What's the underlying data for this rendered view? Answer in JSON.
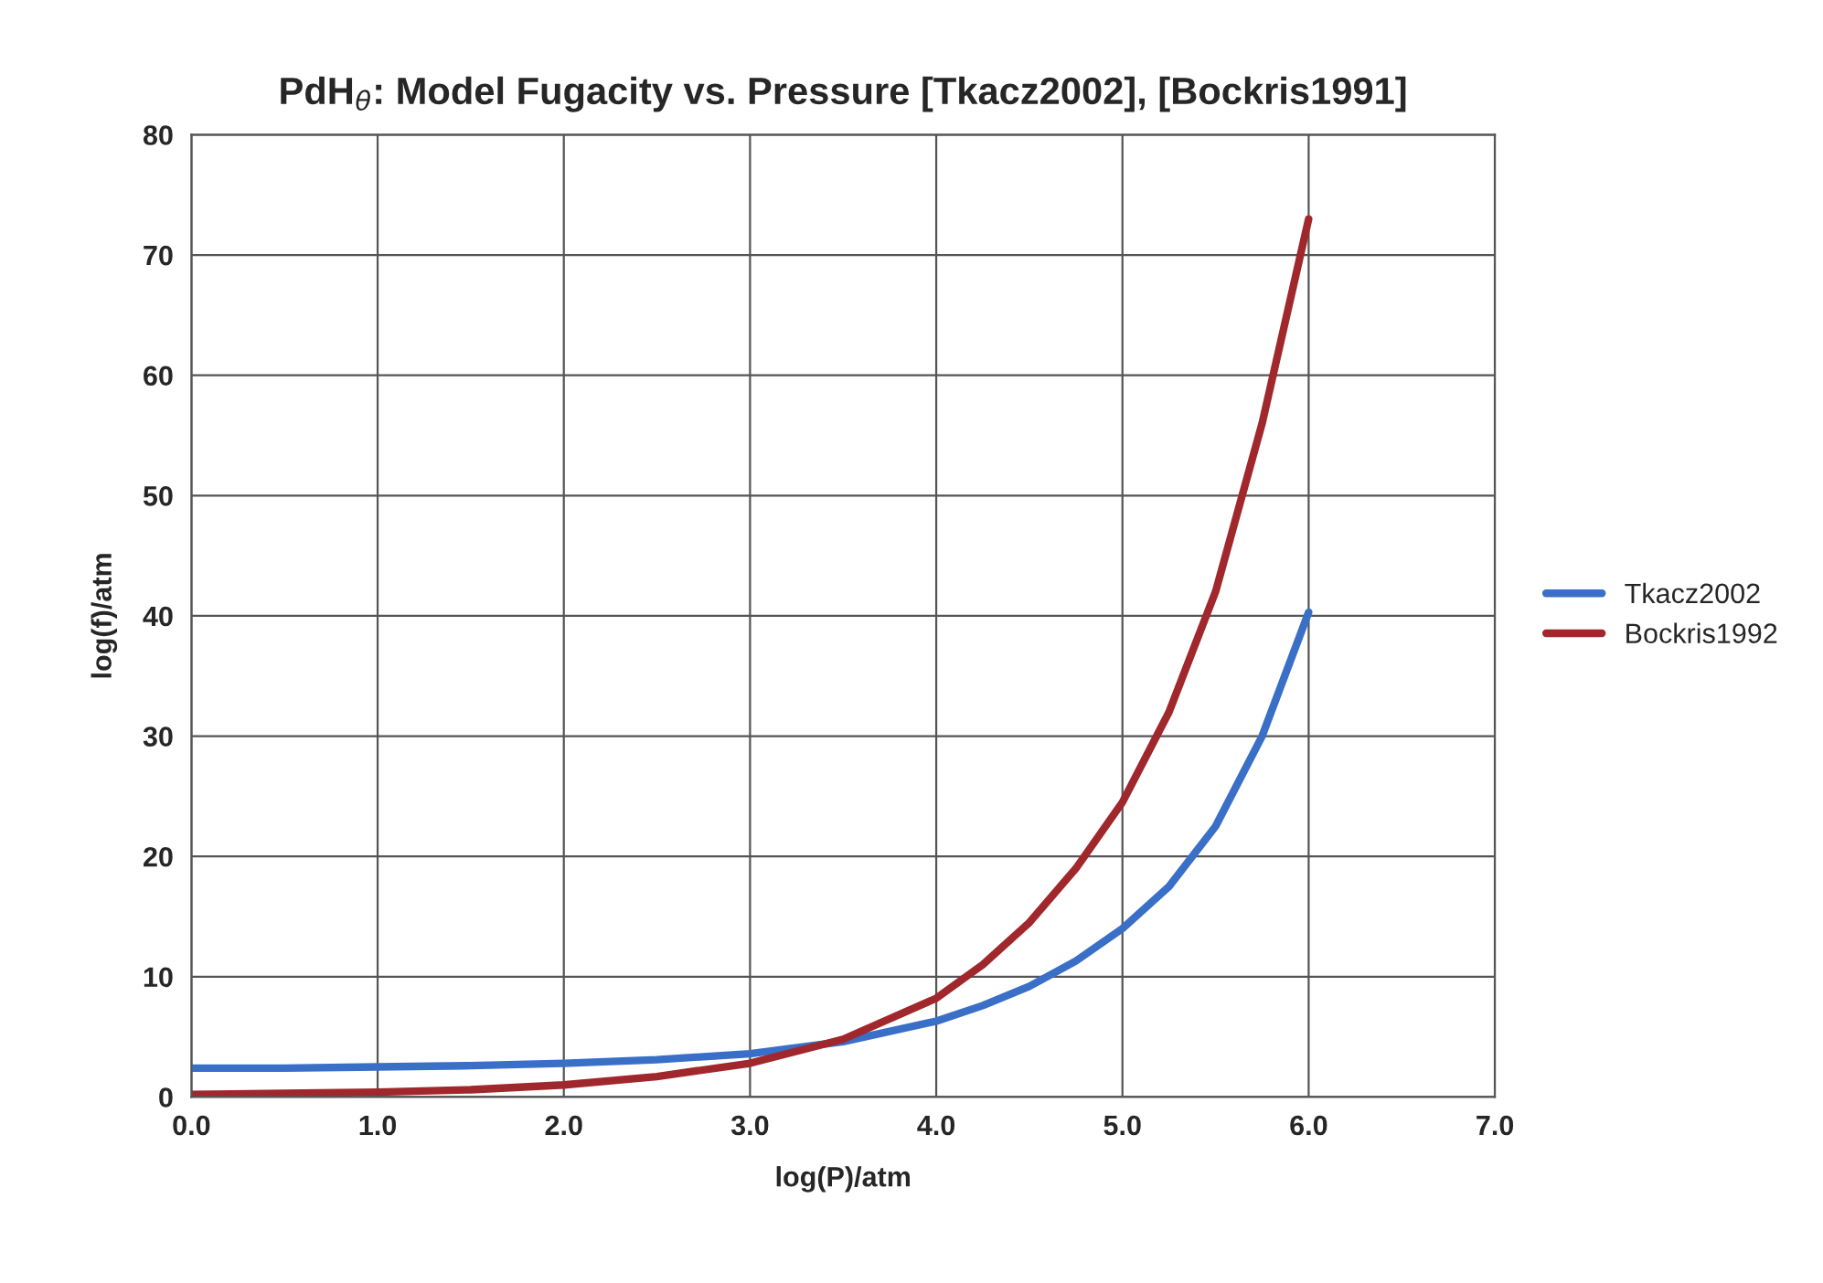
{
  "chart_data": {
    "type": "line",
    "title": "PdH$_{θ}$: Model Fugacity vs. Pressure [Tkacz2002], [Bockris1991]",
    "xlabel": "log(P)/atm",
    "ylabel": "log(f)/atm",
    "x": [
      0,
      0.5,
      1,
      1.5,
      2,
      2.5,
      3,
      3.5,
      4,
      4.25,
      4.5,
      4.75,
      5,
      5.25,
      5.5,
      5.75,
      6
    ],
    "series": [
      {
        "name": "Tkacz2002",
        "color": "#3a6fc8",
        "values": [
          2.4,
          2.4,
          2.5,
          2.6,
          2.8,
          3.1,
          3.6,
          4.6,
          6.3,
          7.6,
          9.2,
          11.3,
          14,
          17.5,
          22.5,
          30,
          40.3
        ]
      },
      {
        "name": "Bockris1992",
        "color": "#a0282c",
        "values": [
          0.2,
          0.3,
          0.4,
          0.6,
          1.0,
          1.7,
          2.8,
          4.8,
          8.2,
          11,
          14.5,
          19,
          24.5,
          32,
          42,
          56,
          73
        ]
      }
    ],
    "xlim": [
      0,
      7
    ],
    "xticks": [
      {
        "value": 0,
        "label": "0.0"
      },
      {
        "value": 1,
        "label": "1.0"
      },
      {
        "value": 2,
        "label": "2.0"
      },
      {
        "value": 3,
        "label": "3.0"
      },
      {
        "value": 4,
        "label": "4.0"
      },
      {
        "value": 5,
        "label": "5.0"
      },
      {
        "value": 6,
        "label": "6.0"
      },
      {
        "value": 7,
        "label": "7.0"
      }
    ],
    "ylim": [
      0,
      80
    ],
    "yticks": [
      0,
      10,
      20,
      30,
      40,
      50,
      60,
      70,
      80
    ],
    "grid": true,
    "legend": "right",
    "marker": "none",
    "line_style": "solid"
  }
}
